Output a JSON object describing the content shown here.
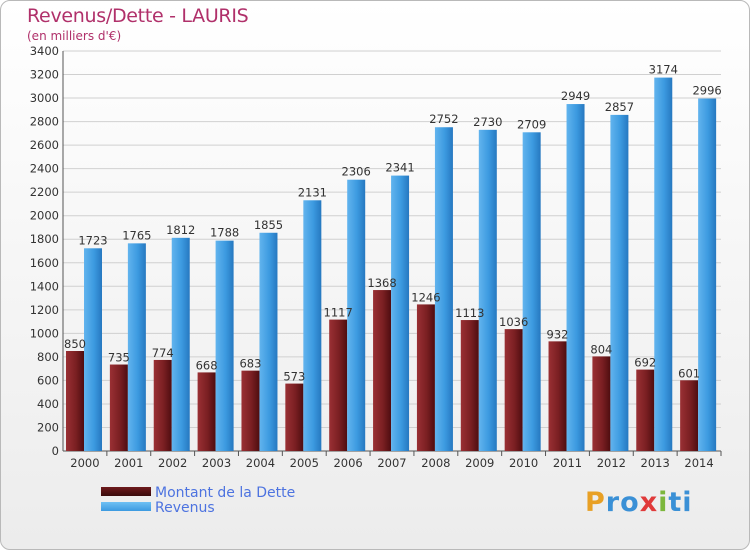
{
  "chart_data": {
    "type": "bar",
    "title": "Revenus/Dette - LAURIS",
    "subtitle": "(en milliers d'€)",
    "categories": [
      "2000",
      "2001",
      "2002",
      "2003",
      "2004",
      "2005",
      "2006",
      "2007",
      "2008",
      "2009",
      "2010",
      "2011",
      "2012",
      "2013",
      "2014"
    ],
    "series": [
      {
        "name": "Montant de la Dette",
        "color": "#7a1f22",
        "values": [
          850,
          735,
          774,
          668,
          683,
          573,
          1117,
          1368,
          1246,
          1113,
          1036,
          932,
          804,
          692,
          601
        ]
      },
      {
        "name": "Revenus",
        "color": "#3c9ae0",
        "values": [
          1723,
          1765,
          1812,
          1788,
          1855,
          2131,
          2306,
          2341,
          2752,
          2730,
          2709,
          2949,
          2857,
          3174,
          2996
        ]
      }
    ],
    "ylim": [
      0,
      3400
    ],
    "yticks": [
      0,
      200,
      400,
      600,
      800,
      1000,
      1200,
      1400,
      1600,
      1800,
      2000,
      2200,
      2400,
      2600,
      2800,
      3000,
      3200,
      3400
    ],
    "grid": true,
    "legend_position": "bottom-left"
  },
  "legend": {
    "items": [
      {
        "label": "Montant de la Dette",
        "color": "#6e1a1c"
      },
      {
        "label": "Revenus",
        "color": "#3c9ae0"
      }
    ]
  },
  "logo": {
    "letters": [
      "P",
      "r",
      "o",
      "x",
      "i",
      "t",
      "i"
    ]
  }
}
